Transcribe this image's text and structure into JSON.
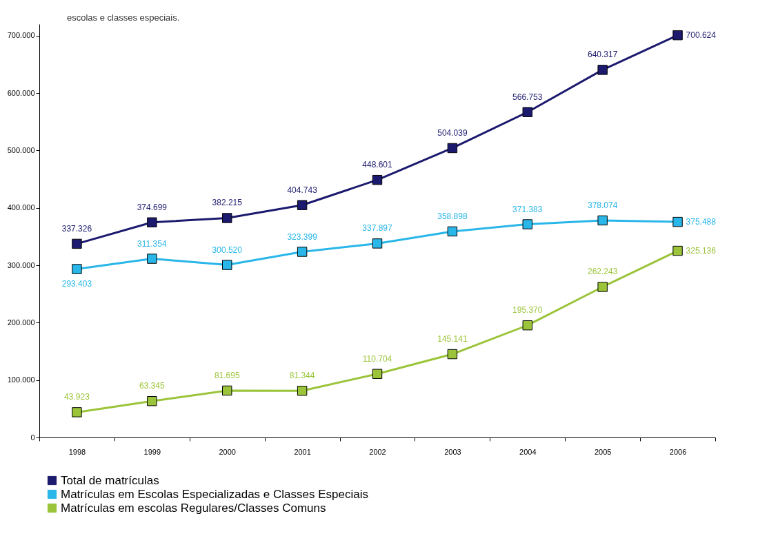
{
  "chart_data": {
    "type": "line",
    "annotations": [
      "escolas e classes especiais."
    ],
    "categories": [
      "1998",
      "1999",
      "2000",
      "2001",
      "2002",
      "2003",
      "2004",
      "2005",
      "2006"
    ],
    "series": [
      {
        "name": "Total de matrículas",
        "color": "#1c1a6e",
        "values": [
          337326,
          374699,
          382215,
          404743,
          448601,
          504039,
          566753,
          640317,
          700624
        ],
        "value_labels": [
          "337.326",
          "374.699",
          "382.215",
          "404.743",
          "448.601",
          "504.039",
          "566.753",
          "640.317",
          "700.624"
        ]
      },
      {
        "name": "Matrículas em Escolas Especializadas e Classes Especiais",
        "color": "#29b6e8",
        "values": [
          293403,
          311354,
          300520,
          323399,
          337897,
          358898,
          371383,
          378074,
          375488
        ],
        "value_labels": [
          "293.403",
          "311.354",
          "300.520",
          "323.399",
          "337.897",
          "358.898",
          "371.383",
          "378.074",
          "375.488"
        ]
      },
      {
        "name": "Matrículas em escolas Regulares/Classes Comuns",
        "color": "#9bc43a",
        "values": [
          43923,
          63345,
          81695,
          81344,
          110704,
          145141,
          195370,
          262243,
          325136
        ],
        "value_labels": [
          "43.923",
          "63.345",
          "81.695",
          "81.344",
          "110.704",
          "145.141",
          "195.370",
          "262.243",
          "325.136"
        ]
      }
    ],
    "ylim": [
      0,
      720000
    ],
    "yticks": [
      0,
      {
        "value": 100000,
        "label": "100.000"
      },
      {
        "value": 200000,
        "label": "200.000"
      },
      {
        "value": 300000,
        "label": "300.000"
      },
      {
        "value": 400000,
        "label": "400.000"
      },
      {
        "value": 500000,
        "label": "500.000"
      },
      {
        "value": 600000,
        "label": "600.000"
      },
      {
        "value": 700000,
        "label": "700.000"
      }
    ],
    "marker": "square",
    "legend": "bottom",
    "grid": false
  }
}
